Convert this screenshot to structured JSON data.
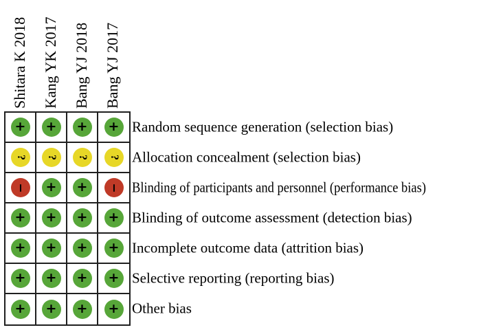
{
  "chart_data": {
    "type": "table",
    "subtype": "risk-of-bias-summary",
    "studies": [
      "Shitara K 2018",
      "Kang YK 2017",
      "Bang YJ 2018",
      "Bang YJ 2017"
    ],
    "domains": [
      {
        "label": "Random sequence generation (selection bias)",
        "judgements": [
          "low",
          "low",
          "low",
          "low"
        ]
      },
      {
        "label": "Allocation concealment (selection bias)",
        "judgements": [
          "unclear",
          "unclear",
          "unclear",
          "unclear"
        ]
      },
      {
        "label": "Blinding of participants and personnel (performance bias)",
        "judgements": [
          "high",
          "low",
          "low",
          "high"
        ]
      },
      {
        "label": "Blinding of outcome assessment (detection bias)",
        "judgements": [
          "low",
          "low",
          "low",
          "low"
        ]
      },
      {
        "label": "Incomplete outcome data (attrition bias)",
        "judgements": [
          "low",
          "low",
          "low",
          "low"
        ]
      },
      {
        "label": "Selective reporting (reporting bias)",
        "judgements": [
          "low",
          "low",
          "low",
          "low"
        ]
      },
      {
        "label": "Other bias",
        "judgements": [
          "low",
          "low",
          "low",
          "low"
        ]
      }
    ],
    "symbols": {
      "low": "+",
      "unclear": "?",
      "high": "−"
    },
    "colors": {
      "low": "#57a639",
      "unclear": "#e7d727",
      "high": "#bf3a27",
      "grid_line": "#1f1f1f",
      "text": "#000000",
      "background": "#ffffff"
    },
    "layout": {
      "legend": "none",
      "grid_on": true
    }
  }
}
